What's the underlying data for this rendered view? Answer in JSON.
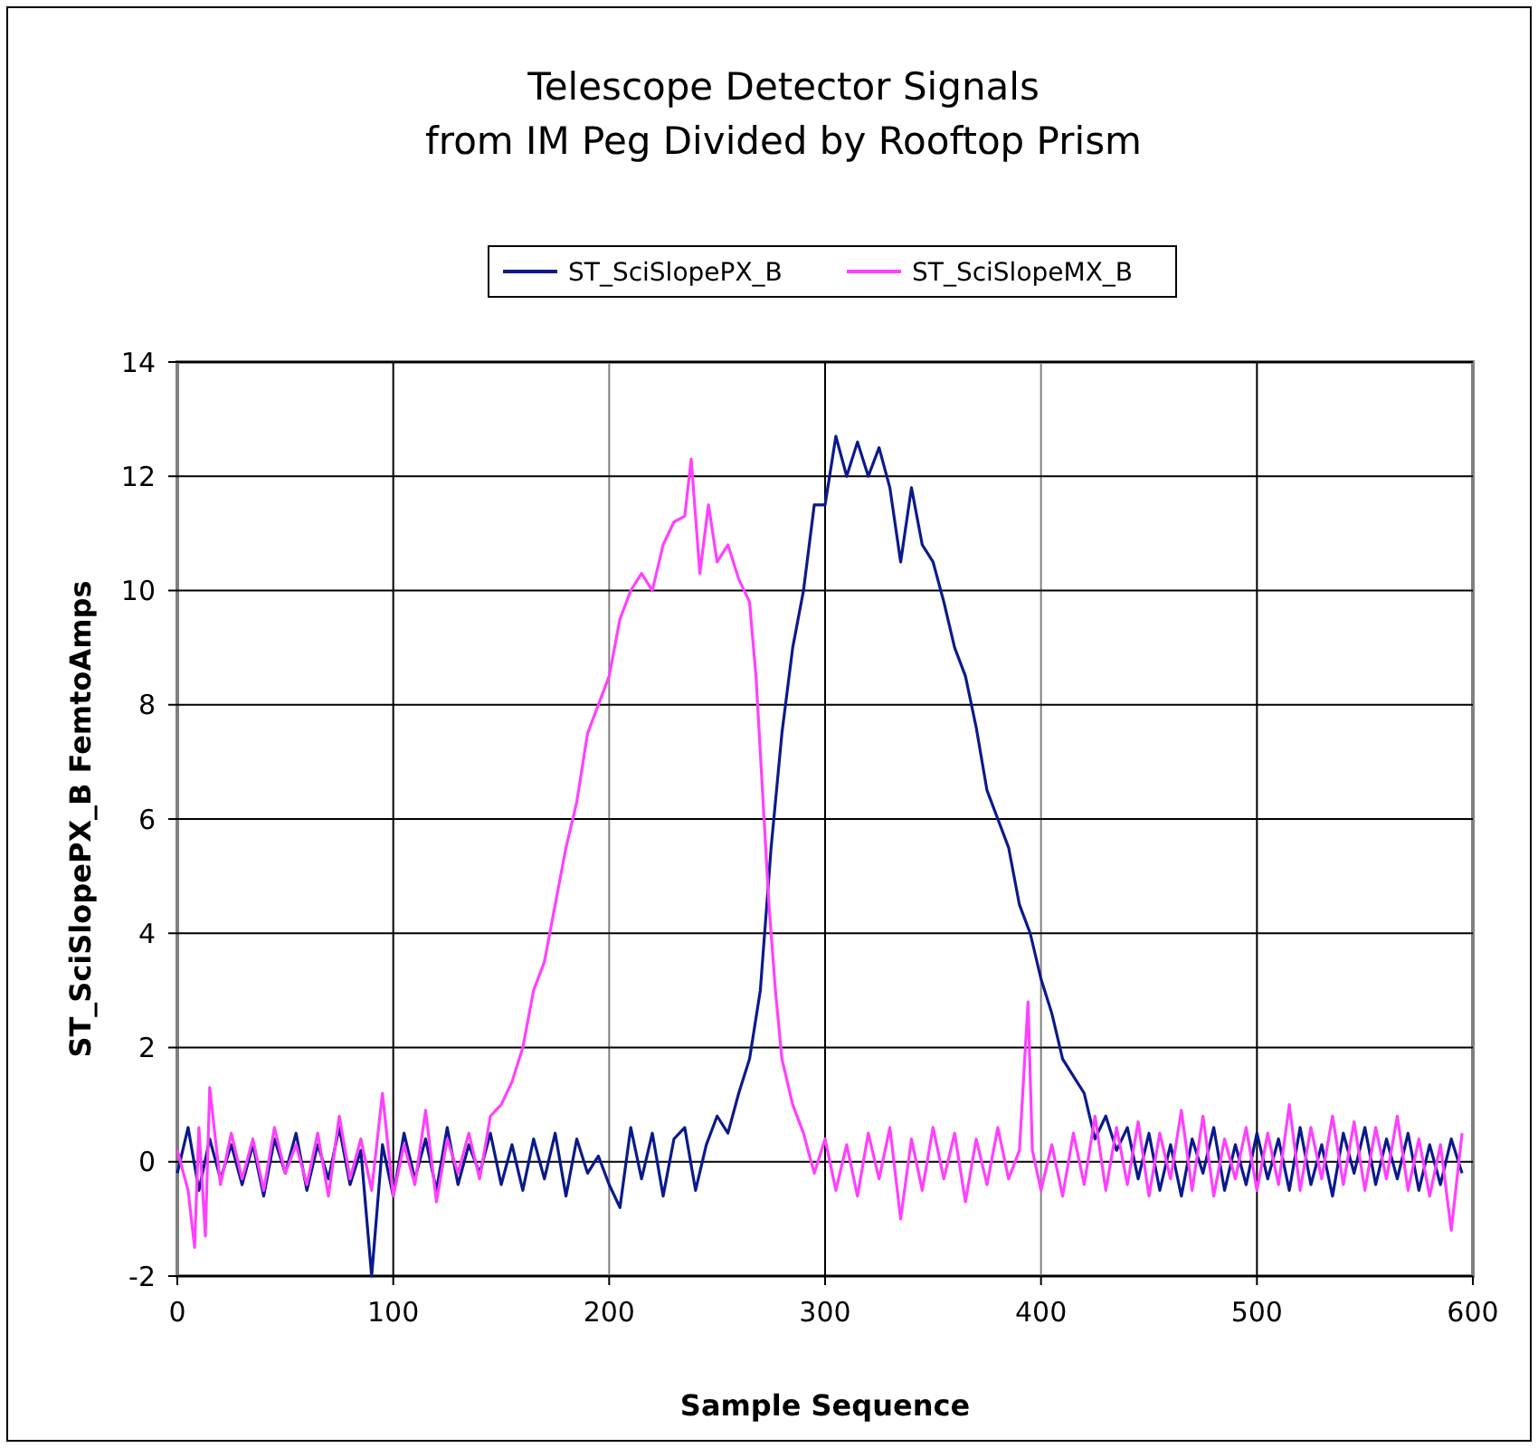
{
  "chart_data": {
    "type": "line",
    "title": "Telescope Detector Signals\nfrom IM Peg Divided by Rooftop Prism",
    "xlabel": "Sample Sequence",
    "ylabel": "ST_SciSlopePX_B  FemtoAmps",
    "xlim": [
      0,
      600
    ],
    "xticks": [
      0,
      100,
      200,
      300,
      400,
      500,
      600
    ],
    "ylim": [
      -2,
      14
    ],
    "yticks": [
      -2,
      0,
      2,
      4,
      6,
      8,
      10,
      12,
      14
    ],
    "grid": true,
    "legend": "top",
    "marker": "none",
    "line_style": "solid",
    "series": [
      {
        "name": "ST_SciSlopePX_B",
        "color": "#0a1a8c",
        "x": [
          0,
          5,
          10,
          15,
          20,
          25,
          30,
          35,
          40,
          45,
          50,
          55,
          60,
          65,
          70,
          75,
          80,
          85,
          90,
          95,
          100,
          105,
          110,
          115,
          120,
          125,
          130,
          135,
          140,
          145,
          150,
          155,
          160,
          165,
          170,
          175,
          180,
          185,
          190,
          195,
          200,
          205,
          210,
          215,
          220,
          225,
          230,
          235,
          240,
          245,
          250,
          255,
          260,
          265,
          270,
          275,
          280,
          285,
          290,
          295,
          300,
          305,
          310,
          315,
          320,
          325,
          330,
          335,
          340,
          345,
          350,
          355,
          360,
          365,
          370,
          375,
          380,
          385,
          390,
          395,
          400,
          405,
          410,
          415,
          420,
          425,
          430,
          435,
          440,
          445,
          450,
          455,
          460,
          465,
          470,
          475,
          480,
          485,
          490,
          495,
          500,
          505,
          510,
          515,
          520,
          525,
          530,
          535,
          540,
          545,
          550,
          555,
          560,
          565,
          570,
          575,
          580,
          585,
          590,
          595
        ],
        "values": [
          -0.2,
          0.6,
          -0.5,
          0.4,
          -0.3,
          0.3,
          -0.4,
          0.3,
          -0.6,
          0.4,
          -0.2,
          0.5,
          -0.5,
          0.3,
          -0.3,
          0.6,
          -0.4,
          0.2,
          -2,
          0.3,
          -0.6,
          0.5,
          -0.3,
          0.4,
          -0.5,
          0.6,
          -0.4,
          0.3,
          -0.2,
          0.5,
          -0.4,
          0.3,
          -0.5,
          0.4,
          -0.3,
          0.5,
          -0.6,
          0.4,
          -0.2,
          0.1,
          -0.4,
          -0.8,
          0.6,
          -0.3,
          0.5,
          -0.6,
          0.4,
          0.6,
          -0.5,
          0.3,
          0.8,
          0.5,
          1.2,
          1.8,
          3,
          5.5,
          7.5,
          9,
          10,
          11.5,
          11.5,
          12.7,
          12,
          12.6,
          12,
          12.5,
          11.8,
          10.5,
          11.8,
          10.8,
          10.5,
          9.8,
          9,
          8.5,
          7.6,
          6.5,
          6,
          5.5,
          4.5,
          4,
          3.2,
          2.6,
          1.8,
          1.5,
          1.2,
          0.4,
          0.8,
          0.2,
          0.6,
          -0.3,
          0.5,
          -0.5,
          0.3,
          -0.6,
          0.4,
          -0.2,
          0.6,
          -0.5,
          0.3,
          -0.4,
          0.5,
          -0.3,
          0.4,
          -0.5,
          0.6,
          -0.4,
          0.3,
          -0.6,
          0.5,
          -0.2,
          0.6,
          -0.4,
          0.4,
          -0.3,
          0.5,
          -0.5,
          0.3,
          -0.4,
          0.4,
          -0.2
        ]
      },
      {
        "name": "ST_SciSlopeMX_B",
        "color": "#ff40ff",
        "x": [
          0,
          5,
          8,
          10,
          13,
          15,
          20,
          25,
          30,
          35,
          40,
          45,
          50,
          55,
          60,
          65,
          70,
          75,
          80,
          85,
          90,
          95,
          100,
          105,
          110,
          115,
          120,
          125,
          130,
          135,
          140,
          145,
          150,
          155,
          160,
          165,
          170,
          175,
          180,
          185,
          190,
          195,
          200,
          205,
          210,
          215,
          220,
          225,
          230,
          235,
          238,
          242,
          246,
          250,
          255,
          260,
          265,
          268,
          271,
          274,
          277,
          280,
          285,
          290,
          295,
          300,
          305,
          310,
          315,
          320,
          325,
          330,
          335,
          340,
          345,
          350,
          355,
          360,
          365,
          370,
          375,
          380,
          385,
          390,
          394,
          396,
          400,
          405,
          410,
          415,
          420,
          425,
          430,
          435,
          440,
          445,
          450,
          455,
          460,
          465,
          470,
          475,
          480,
          485,
          490,
          495,
          500,
          505,
          510,
          515,
          520,
          525,
          530,
          535,
          540,
          545,
          550,
          555,
          560,
          565,
          570,
          575,
          580,
          585,
          590,
          595
        ],
        "values": [
          0.2,
          -0.5,
          -1.5,
          0.6,
          -1.3,
          1.3,
          -0.4,
          0.5,
          -0.3,
          0.4,
          -0.5,
          0.6,
          -0.2,
          0.3,
          -0.4,
          0.5,
          -0.6,
          0.8,
          -0.3,
          0.4,
          -0.5,
          1.2,
          -0.6,
          0.3,
          -0.4,
          0.9,
          -0.7,
          0.4,
          -0.2,
          0.5,
          -0.3,
          0.8,
          1,
          1.4,
          2,
          3,
          3.5,
          4.5,
          5.5,
          6.3,
          7.5,
          8,
          8.5,
          9.5,
          10,
          10.3,
          10,
          10.8,
          11.2,
          11.3,
          12.3,
          10.3,
          11.5,
          10.5,
          10.8,
          10.2,
          9.8,
          8.5,
          6.5,
          4.5,
          3,
          1.8,
          1,
          0.5,
          -0.2,
          0.4,
          -0.5,
          0.3,
          -0.6,
          0.5,
          -0.3,
          0.6,
          -1,
          0.4,
          -0.5,
          0.6,
          -0.3,
          0.5,
          -0.7,
          0.4,
          -0.4,
          0.6,
          -0.3,
          0.2,
          2.8,
          0.2,
          -0.5,
          0.3,
          -0.6,
          0.5,
          -0.4,
          0.8,
          -0.5,
          0.6,
          -0.4,
          0.7,
          -0.6,
          0.5,
          -0.3,
          0.9,
          -0.5,
          0.8,
          -0.6,
          0.4,
          -0.3,
          0.6,
          -0.5,
          0.5,
          -0.4,
          1,
          -0.5,
          0.6,
          -0.3,
          0.8,
          -0.4,
          0.7,
          -0.5,
          0.6,
          -0.3,
          0.8,
          -0.5,
          0.4,
          -0.6,
          0.3,
          -1.2,
          0.5
        ]
      }
    ]
  }
}
